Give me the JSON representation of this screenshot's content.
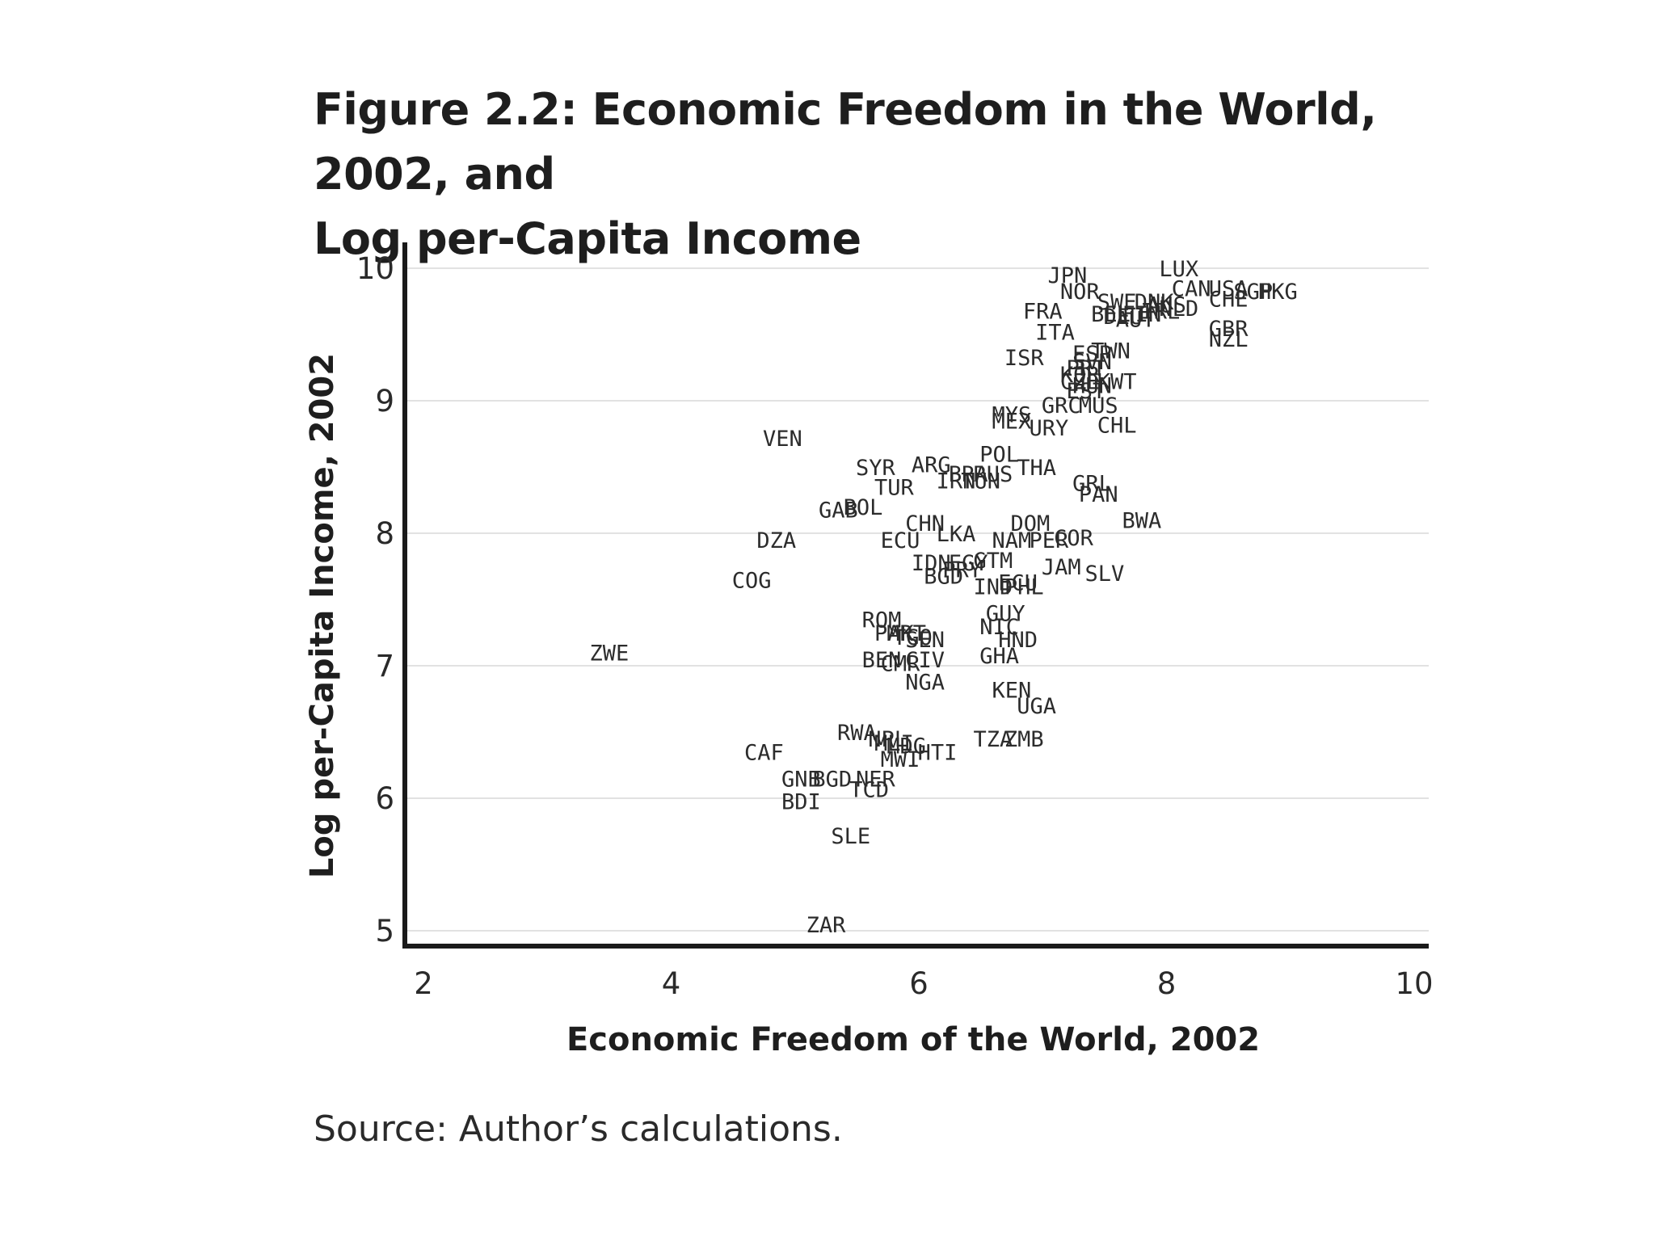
{
  "figure": {
    "title_line1": "Figure 2.2:  Economic Freedom in the World, 2002, and",
    "title_line2": "Log per-Capita Income",
    "source": "Source: Author’s calculations."
  },
  "chart_data": {
    "type": "scatter",
    "title": "Figure 2.2: Economic Freedom in the World, 2002, and Log per-Capita Income",
    "xlabel": "Economic Freedom of the World, 2002",
    "ylabel": "Log per-Capita Income, 2002",
    "xlim": [
      2,
      10
    ],
    "ylim": [
      4.9,
      10.1
    ],
    "xticks": [
      2,
      4,
      6,
      8,
      10
    ],
    "yticks": [
      5,
      6,
      7,
      8,
      9,
      10
    ],
    "grid": "horizontal",
    "marker": "country-code-label",
    "points": [
      {
        "label": "LUX",
        "x": 8.1,
        "y": 10.0
      },
      {
        "label": "JPN",
        "x": 7.2,
        "y": 9.95
      },
      {
        "label": "CAN",
        "x": 8.2,
        "y": 9.85
      },
      {
        "label": "USA",
        "x": 8.5,
        "y": 9.85
      },
      {
        "label": "SGP",
        "x": 8.7,
        "y": 9.83
      },
      {
        "label": "HKG",
        "x": 8.9,
        "y": 9.83
      },
      {
        "label": "NOR",
        "x": 7.3,
        "y": 9.83
      },
      {
        "label": "CHE",
        "x": 8.5,
        "y": 9.77
      },
      {
        "label": "SWE",
        "x": 7.6,
        "y": 9.75
      },
      {
        "label": "DNK",
        "x": 7.9,
        "y": 9.75
      },
      {
        "label": "AUS",
        "x": 8.0,
        "y": 9.73
      },
      {
        "label": "NLD",
        "x": 8.1,
        "y": 9.7
      },
      {
        "label": "FRA",
        "x": 7.0,
        "y": 9.68
      },
      {
        "label": "BEL",
        "x": 7.55,
        "y": 9.66
      },
      {
        "label": "DEU",
        "x": 7.65,
        "y": 9.64
      },
      {
        "label": "FIN",
        "x": 7.8,
        "y": 9.66
      },
      {
        "label": "IRL",
        "x": 7.95,
        "y": 9.68
      },
      {
        "label": "AUT",
        "x": 7.75,
        "y": 9.62
      },
      {
        "label": "ITA",
        "x": 7.1,
        "y": 9.52
      },
      {
        "label": "GBR",
        "x": 8.5,
        "y": 9.55
      },
      {
        "label": "NZL",
        "x": 8.5,
        "y": 9.47
      },
      {
        "label": "TWN",
        "x": 7.55,
        "y": 9.38
      },
      {
        "label": "ESP",
        "x": 7.4,
        "y": 9.36
      },
      {
        "label": "ISR",
        "x": 6.85,
        "y": 9.33
      },
      {
        "label": "SVN",
        "x": 7.4,
        "y": 9.3
      },
      {
        "label": "PRT",
        "x": 7.35,
        "y": 9.25
      },
      {
        "label": "KOR",
        "x": 7.3,
        "y": 9.2
      },
      {
        "label": "KWT",
        "x": 7.6,
        "y": 9.15
      },
      {
        "label": "CZE",
        "x": 7.3,
        "y": 9.15
      },
      {
        "label": "HUN",
        "x": 7.4,
        "y": 9.12
      },
      {
        "label": "EST",
        "x": 7.35,
        "y": 9.08
      },
      {
        "label": "GRC",
        "x": 7.15,
        "y": 8.97
      },
      {
        "label": "MUS",
        "x": 7.45,
        "y": 8.97
      },
      {
        "label": "MYS",
        "x": 6.75,
        "y": 8.9
      },
      {
        "label": "MEX",
        "x": 6.75,
        "y": 8.85
      },
      {
        "label": "URY",
        "x": 7.05,
        "y": 8.8
      },
      {
        "label": "CHL",
        "x": 7.6,
        "y": 8.82
      },
      {
        "label": "VEN",
        "x": 4.9,
        "y": 8.72
      },
      {
        "label": "POL",
        "x": 6.65,
        "y": 8.6
      },
      {
        "label": "ARG",
        "x": 6.1,
        "y": 8.52
      },
      {
        "label": "SYR",
        "x": 5.65,
        "y": 8.5
      },
      {
        "label": "THA",
        "x": 6.95,
        "y": 8.5
      },
      {
        "label": "BRA",
        "x": 6.4,
        "y": 8.45
      },
      {
        "label": "RUS",
        "x": 6.6,
        "y": 8.45
      },
      {
        "label": "IRN",
        "x": 6.3,
        "y": 8.4
      },
      {
        "label": "TUN",
        "x": 6.5,
        "y": 8.4
      },
      {
        "label": "TUR",
        "x": 5.8,
        "y": 8.35
      },
      {
        "label": "GRL",
        "x": 7.4,
        "y": 8.38
      },
      {
        "label": "PAN",
        "x": 7.45,
        "y": 8.3
      },
      {
        "label": "GAB",
        "x": 5.35,
        "y": 8.18
      },
      {
        "label": "BOL",
        "x": 5.55,
        "y": 8.2
      },
      {
        "label": "BWA",
        "x": 7.8,
        "y": 8.1
      },
      {
        "label": "CHN",
        "x": 6.05,
        "y": 8.08
      },
      {
        "label": "DOM",
        "x": 6.9,
        "y": 8.08
      },
      {
        "label": "LKA",
        "x": 6.3,
        "y": 8.0
      },
      {
        "label": "ECU",
        "x": 5.85,
        "y": 7.95
      },
      {
        "label": "NAM",
        "x": 6.75,
        "y": 7.95
      },
      {
        "label": "PER",
        "x": 7.05,
        "y": 7.95
      },
      {
        "label": "COR",
        "x": 7.25,
        "y": 7.97
      },
      {
        "label": "DZA",
        "x": 4.85,
        "y": 7.95
      },
      {
        "label": "IDN",
        "x": 6.1,
        "y": 7.78
      },
      {
        "label": "EGY",
        "x": 6.4,
        "y": 7.78
      },
      {
        "label": "GTM",
        "x": 6.6,
        "y": 7.8
      },
      {
        "label": "PRY",
        "x": 6.35,
        "y": 7.73
      },
      {
        "label": "JAM",
        "x": 7.15,
        "y": 7.75
      },
      {
        "label": "SLV",
        "x": 7.5,
        "y": 7.7
      },
      {
        "label": "BGD",
        "x": 6.2,
        "y": 7.68
      },
      {
        "label": "IND",
        "x": 6.6,
        "y": 7.6
      },
      {
        "label": "PHL",
        "x": 6.85,
        "y": 7.6
      },
      {
        "label": "ECU",
        "x": 6.8,
        "y": 7.63
      },
      {
        "label": "COG",
        "x": 4.65,
        "y": 7.65
      },
      {
        "label": "GUY",
        "x": 6.7,
        "y": 7.4
      },
      {
        "label": "ROM",
        "x": 5.7,
        "y": 7.35
      },
      {
        "label": "NIC",
        "x": 6.65,
        "y": 7.3
      },
      {
        "label": "PAK",
        "x": 5.8,
        "y": 7.25
      },
      {
        "label": "MRT",
        "x": 5.9,
        "y": 7.25
      },
      {
        "label": "TGO",
        "x": 5.95,
        "y": 7.22
      },
      {
        "label": "SEN",
        "x": 6.05,
        "y": 7.2
      },
      {
        "label": "HND",
        "x": 6.8,
        "y": 7.2
      },
      {
        "label": "ZWE",
        "x": 3.5,
        "y": 7.1
      },
      {
        "label": "GHA",
        "x": 6.65,
        "y": 7.08
      },
      {
        "label": "BEN",
        "x": 5.7,
        "y": 7.05
      },
      {
        "label": "CMR",
        "x": 5.85,
        "y": 7.02
      },
      {
        "label": "CIV",
        "x": 6.05,
        "y": 7.05
      },
      {
        "label": "NGA",
        "x": 6.05,
        "y": 6.88
      },
      {
        "label": "KEN",
        "x": 6.75,
        "y": 6.82
      },
      {
        "label": "UGA",
        "x": 6.95,
        "y": 6.7
      },
      {
        "label": "RWA",
        "x": 5.5,
        "y": 6.5
      },
      {
        "label": "NPL",
        "x": 5.75,
        "y": 6.45
      },
      {
        "label": "MLI",
        "x": 5.8,
        "y": 6.42
      },
      {
        "label": "MDG",
        "x": 5.9,
        "y": 6.4
      },
      {
        "label": "HTI",
        "x": 6.15,
        "y": 6.35
      },
      {
        "label": "TZA",
        "x": 6.6,
        "y": 6.45
      },
      {
        "label": "ZMB",
        "x": 6.85,
        "y": 6.45
      },
      {
        "label": "MWI",
        "x": 5.85,
        "y": 6.3
      },
      {
        "label": "CAF",
        "x": 4.75,
        "y": 6.35
      },
      {
        "label": "GNB",
        "x": 5.05,
        "y": 6.15
      },
      {
        "label": "BGD",
        "x": 5.3,
        "y": 6.15
      },
      {
        "label": "NER",
        "x": 5.65,
        "y": 6.15
      },
      {
        "label": "TCD",
        "x": 5.6,
        "y": 6.07
      },
      {
        "label": "BDI",
        "x": 5.05,
        "y": 5.98
      },
      {
        "label": "SLE",
        "x": 5.45,
        "y": 5.72
      },
      {
        "label": "ZAR",
        "x": 5.25,
        "y": 5.05
      }
    ]
  }
}
